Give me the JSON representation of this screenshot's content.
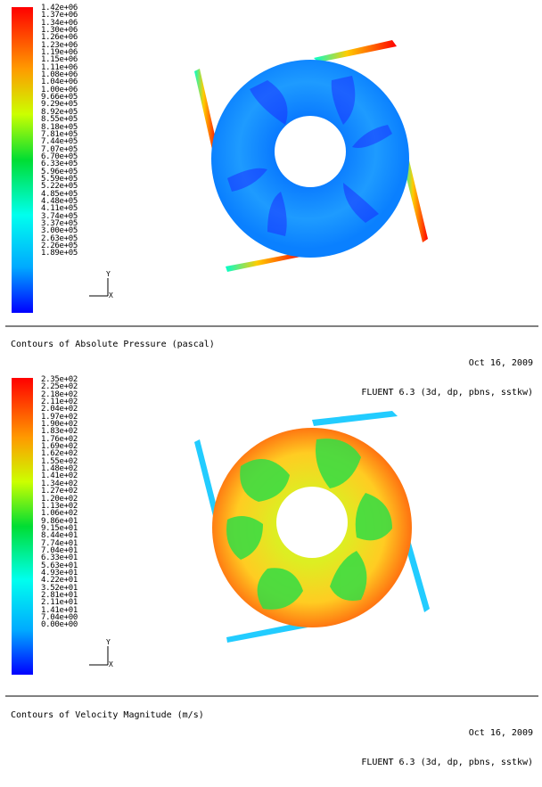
{
  "top": {
    "scale_labels": [
      "1.42e+06",
      "1.37e+06",
      "1.34e+06",
      "1.30e+06",
      "1.26e+06",
      "1.23e+06",
      "1.19e+06",
      "1.15e+06",
      "1.11e+06",
      "1.08e+06",
      "1.04e+06",
      "1.00e+06",
      "9.66e+05",
      "9.29e+05",
      "8.92e+05",
      "8.55e+05",
      "8.18e+05",
      "7.81e+05",
      "7.44e+05",
      "7.07e+05",
      "6.70e+05",
      "6.33e+05",
      "5.96e+05",
      "5.59e+05",
      "5.22e+05",
      "4.85e+05",
      "4.48e+05",
      "4.11e+05",
      "3.74e+05",
      "3.37e+05",
      "3.00e+05",
      "2.63e+05",
      "2.26e+05",
      "1.89e+05"
    ],
    "caption_left": "Contours of Absolute Pressure (pascal)",
    "date": "Oct 16, 2009",
    "software": "FLUENT 6.3 (3d, dp, pbns, sstkw)",
    "axis_label": "Y",
    "axis_label2": "X"
  },
  "bottom": {
    "scale_labels": [
      "2.35e+02",
      "2.25e+02",
      "2.18e+02",
      "2.11e+02",
      "2.04e+02",
      "1.97e+02",
      "1.90e+02",
      "1.83e+02",
      "1.76e+02",
      "1.69e+02",
      "1.62e+02",
      "1.55e+02",
      "1.48e+02",
      "1.41e+02",
      "1.34e+02",
      "1.27e+02",
      "1.20e+02",
      "1.13e+02",
      "1.06e+02",
      "9.86e+01",
      "9.15e+01",
      "8.44e+01",
      "7.74e+01",
      "7.04e+01",
      "6.33e+01",
      "5.63e+01",
      "4.93e+01",
      "4.22e+01",
      "3.52e+01",
      "2.81e+01",
      "2.11e+01",
      "1.41e+01",
      "7.04e+00",
      "0.00e+00"
    ],
    "caption_left": "Contours of Velocity Magnitude (m/s)",
    "date": "Oct 16, 2009",
    "software": "FLUENT 6.3 (3d, dp, pbns, sstkw)",
    "axis_label": "Y",
    "axis_label2": "X"
  },
  "colors": {
    "red": "#ff0000",
    "orange": "#ff8c00",
    "yellow": "#ffff00",
    "green": "#00cc22",
    "cyan": "#00ffff",
    "blue": "#0000ff"
  }
}
